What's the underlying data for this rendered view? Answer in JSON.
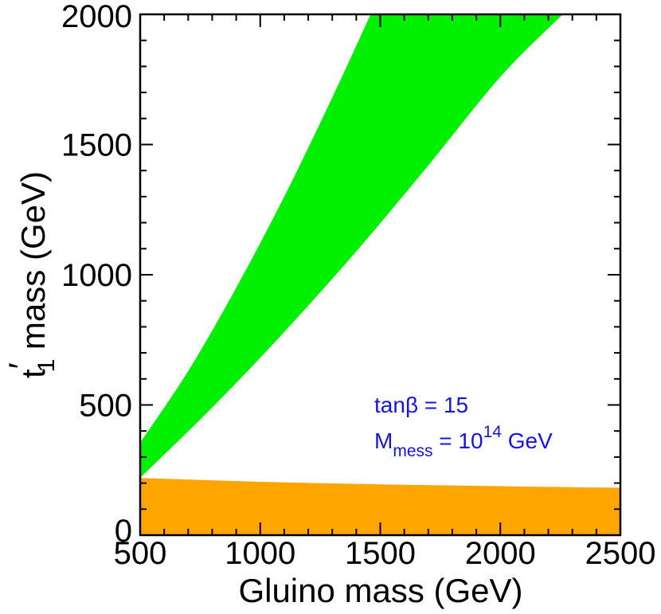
{
  "chart_data": {
    "type": "area",
    "xlabel": "Gluino mass  (GeV)",
    "ylabel_main": "t",
    "ylabel_prime": "′",
    "ylabel_sub": "1",
    "ylabel_rest": " mass  (GeV)",
    "xlim": [
      500,
      2500
    ],
    "ylim": [
      0,
      2000
    ],
    "xticks": [
      500,
      1000,
      1500,
      2000,
      2500
    ],
    "yticks": [
      0,
      500,
      1000,
      1500,
      2000
    ],
    "grid": false,
    "colors": {
      "green_band": "#00f000",
      "orange_band": "#ffa500",
      "annotation": "#1414e6"
    },
    "series": [
      {
        "color": "#00f000",
        "upper": {
          "x": [
            500,
            700,
            900,
            1100,
            1300,
            1460
          ],
          "y": [
            355,
            630,
            950,
            1300,
            1680,
            2000
          ]
        },
        "lower": {
          "x": [
            500,
            800,
            1100,
            1400,
            1700,
            2000,
            2260
          ],
          "y": [
            220,
            490,
            780,
            1090,
            1420,
            1760,
            2000
          ]
        }
      },
      {
        "color": "#ffa500",
        "upper": {
          "x": [
            500,
            1000,
            1500,
            2000,
            2500
          ],
          "y": [
            220,
            205,
            195,
            188,
            182
          ]
        },
        "lower": {
          "x": [
            500,
            2500
          ],
          "y": [
            0,
            0
          ]
        }
      }
    ],
    "annotations": {
      "line1_pre": "tan",
      "line1_beta": "β",
      "line1_post": " = 15",
      "line2_m": "M",
      "line2_sub": "mess",
      "line2_mid": " = 10",
      "line2_sup": "14",
      "line2_post": " GeV"
    }
  }
}
